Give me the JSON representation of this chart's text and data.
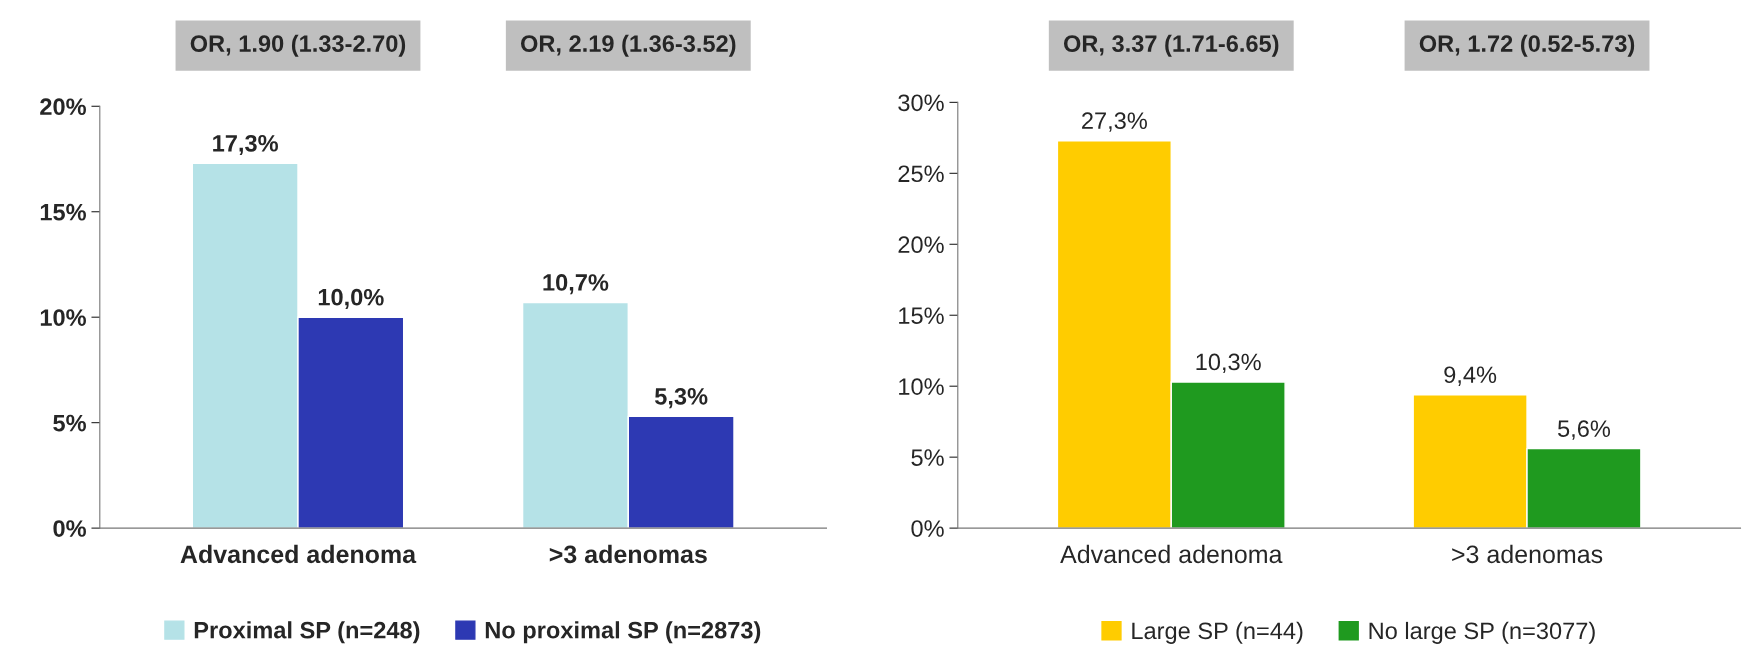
{
  "chart_data": [
    {
      "type": "bar",
      "categories": [
        "Advanced adenoma",
        ">3 adenomas"
      ],
      "series": [
        {
          "name": "Proximal SP (n=248)",
          "color": "#b5e2e7",
          "values": [
            17.3,
            10.7
          ],
          "value_labels": [
            "17,3%",
            "10,7%"
          ]
        },
        {
          "name": "No proximal SP (n=2873)",
          "color": "#2d39b3",
          "values": [
            10.0,
            5.3
          ],
          "value_labels": [
            "10,0%",
            "5,3%"
          ]
        }
      ],
      "ylim": [
        0,
        20
      ],
      "yticks": [
        {
          "value": 0,
          "label": "0%"
        },
        {
          "value": 5,
          "label": "5%"
        },
        {
          "value": 10,
          "label": "10%"
        },
        {
          "value": 15,
          "label": "15%"
        },
        {
          "value": 20,
          "label": "20%"
        }
      ],
      "annotations": [
        "OR, 1.90 (1.33-2.70)",
        "OR, 2.19 (1.36-3.52)"
      ],
      "legend": "bottom",
      "grid": false
    },
    {
      "type": "bar",
      "categories": [
        "Advanced adenoma",
        ">3 adenomas"
      ],
      "series": [
        {
          "name": "Large SP (n=44)",
          "color": "#ffcc00",
          "values": [
            27.3,
            9.4
          ],
          "value_labels": [
            "27,3%",
            "9,4%"
          ]
        },
        {
          "name": "No large SP (n=3077)",
          "color": "#1f9a1f",
          "values": [
            10.3,
            5.6
          ],
          "value_labels": [
            "10,3%",
            "5,6%"
          ]
        }
      ],
      "ylim": [
        0,
        30
      ],
      "yticks": [
        {
          "value": 0,
          "label": "0%"
        },
        {
          "value": 5,
          "label": "5%"
        },
        {
          "value": 10,
          "label": "10%"
        },
        {
          "value": 15,
          "label": "15%"
        },
        {
          "value": 20,
          "label": "20%"
        },
        {
          "value": 25,
          "label": "25%"
        },
        {
          "value": 30,
          "label": "30%"
        }
      ],
      "annotations": [
        "OR, 3.37 (1.71-6.65)",
        "OR, 1.72 (0.52-5.73)"
      ],
      "legend": "bottom",
      "grid": false
    }
  ]
}
